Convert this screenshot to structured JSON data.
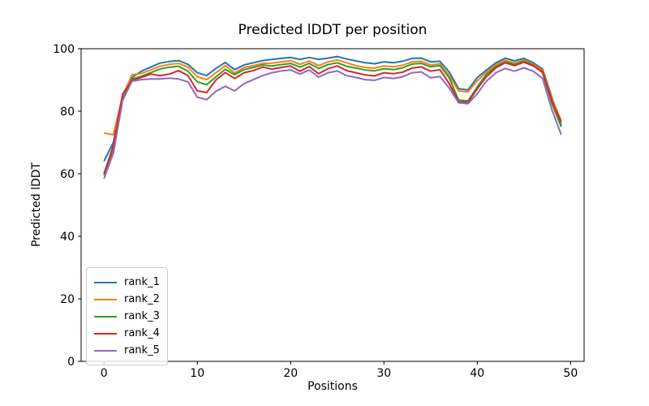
{
  "chart_data": {
    "type": "line",
    "title": "Predicted lDDT per position",
    "xlabel": "Positions",
    "ylabel": "Predicted lDDT",
    "xlim": [
      -2.45,
      51.45
    ],
    "ylim": [
      0,
      100
    ],
    "x_ticks": [
      0,
      10,
      20,
      30,
      40,
      50
    ],
    "y_ticks": [
      0,
      20,
      40,
      60,
      80,
      100
    ],
    "grid": false,
    "legend_position": "lower-left",
    "x": [
      0,
      1,
      2,
      3,
      4,
      5,
      6,
      7,
      8,
      9,
      10,
      11,
      12,
      13,
      14,
      15,
      16,
      17,
      18,
      19,
      20,
      21,
      22,
      23,
      24,
      25,
      26,
      27,
      28,
      29,
      30,
      31,
      32,
      33,
      34,
      35,
      36,
      37,
      38,
      39,
      40,
      41,
      42,
      43,
      44,
      45,
      46,
      47,
      48,
      49
    ],
    "series": [
      {
        "name": "rank_1",
        "color": "#1f77b4",
        "values": [
          64.0,
          70.0,
          84.5,
          90.8,
          92.8,
          94.1,
          95.4,
          95.9,
          96.2,
          95.0,
          92.3,
          91.4,
          93.7,
          95.6,
          93.3,
          94.8,
          95.5,
          96.2,
          96.6,
          96.9,
          97.2,
          96.6,
          97.2,
          96.6,
          97.0,
          97.5,
          96.7,
          96.1,
          95.5,
          95.2,
          95.8,
          95.5,
          96.0,
          96.9,
          97.0,
          95.8,
          96.0,
          92.5,
          87.2,
          86.8,
          90.8,
          93.2,
          95.5,
          97.0,
          96.1,
          96.9,
          95.5,
          93.5,
          84.5,
          75.5
        ]
      },
      {
        "name": "rank_2",
        "color": "#ff7f0e",
        "values": [
          73.0,
          72.5,
          85.0,
          91.7,
          92.1,
          93.2,
          94.4,
          95.0,
          95.3,
          94.1,
          91.0,
          90.1,
          92.3,
          94.6,
          92.2,
          94.0,
          94.6,
          95.3,
          95.4,
          95.8,
          96.2,
          95.0,
          96.1,
          94.6,
          95.8,
          96.4,
          95.5,
          94.6,
          94.0,
          93.8,
          94.5,
          94.2,
          94.7,
          95.8,
          96.0,
          94.8,
          95.2,
          91.4,
          86.5,
          86.2,
          89.8,
          92.6,
          94.9,
          96.3,
          95.4,
          96.4,
          95.0,
          93.0,
          84.0,
          77.0
        ]
      },
      {
        "name": "rank_3",
        "color": "#2ca02c",
        "values": [
          59.5,
          68.0,
          84.0,
          90.3,
          91.2,
          92.3,
          93.5,
          94.1,
          94.4,
          92.8,
          89.4,
          88.5,
          91.0,
          93.4,
          91.7,
          93.3,
          94.0,
          94.8,
          94.5,
          94.9,
          95.3,
          94.1,
          95.3,
          93.7,
          94.9,
          95.5,
          94.4,
          93.8,
          93.2,
          92.9,
          93.6,
          93.3,
          93.9,
          95.1,
          95.3,
          94.2,
          94.6,
          90.6,
          83.6,
          83.3,
          87.8,
          91.9,
          94.3,
          95.8,
          95.0,
          96.0,
          94.7,
          92.3,
          82.5,
          75.0
        ]
      },
      {
        "name": "rank_4",
        "color": "#d62728",
        "values": [
          60.0,
          69.0,
          85.5,
          89.9,
          90.8,
          91.9,
          91.4,
          91.9,
          93.0,
          91.4,
          86.5,
          86.0,
          90.0,
          92.4,
          90.5,
          92.3,
          93.0,
          94.1,
          93.5,
          94.0,
          94.5,
          92.8,
          94.3,
          92.0,
          93.6,
          94.5,
          93.0,
          92.3,
          91.6,
          91.3,
          92.3,
          92.0,
          92.5,
          93.8,
          94.2,
          92.8,
          93.3,
          88.8,
          83.1,
          82.8,
          87.2,
          91.1,
          93.9,
          95.5,
          94.6,
          95.7,
          94.5,
          92.6,
          83.3,
          76.5
        ]
      },
      {
        "name": "rank_5",
        "color": "#9467bd",
        "values": [
          58.5,
          66.5,
          83.5,
          89.6,
          90.1,
          90.3,
          90.3,
          90.6,
          90.3,
          89.4,
          84.5,
          83.7,
          86.4,
          88.0,
          86.5,
          88.8,
          90.1,
          91.4,
          92.3,
          92.9,
          93.2,
          91.9,
          93.2,
          90.9,
          92.3,
          92.9,
          91.4,
          90.8,
          90.1,
          89.9,
          90.8,
          90.5,
          91.0,
          92.3,
          92.6,
          90.7,
          91.1,
          87.4,
          82.7,
          82.4,
          85.6,
          89.7,
          92.3,
          93.7,
          92.8,
          93.9,
          92.8,
          90.5,
          80.5,
          72.5
        ]
      }
    ]
  }
}
